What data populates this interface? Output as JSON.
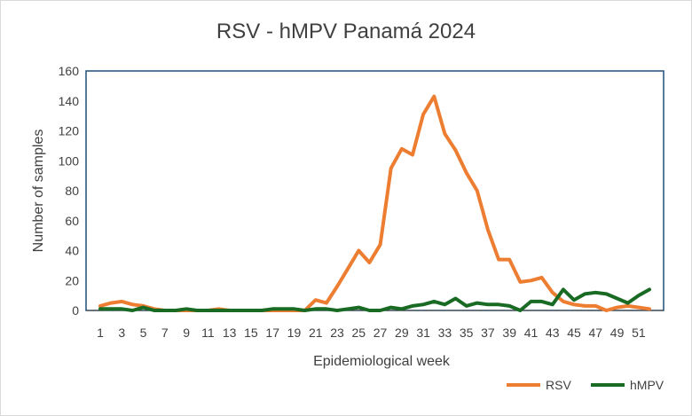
{
  "chart_data": {
    "type": "line",
    "title": "RSV - hMPV Panamá 2024",
    "xlabel": "Epidemiological week",
    "ylabel": "Number of samples",
    "ylim": [
      0,
      160
    ],
    "yticks": [
      "0",
      "20",
      "40",
      "60",
      "80",
      "100",
      "120",
      "140",
      "160"
    ],
    "x": [
      1,
      2,
      3,
      4,
      5,
      6,
      7,
      8,
      9,
      10,
      11,
      12,
      13,
      14,
      15,
      16,
      17,
      18,
      19,
      20,
      21,
      22,
      23,
      24,
      25,
      26,
      27,
      28,
      29,
      30,
      31,
      32,
      33,
      34,
      35,
      36,
      37,
      38,
      39,
      40,
      41,
      42,
      43,
      44,
      45,
      46,
      47,
      48,
      49,
      50,
      51,
      52
    ],
    "xtick_labels": [
      "1",
      "3",
      "5",
      "7",
      "9",
      "11",
      "13",
      "15",
      "17",
      "19",
      "21",
      "23",
      "25",
      "27",
      "29",
      "31",
      "33",
      "35",
      "37",
      "39",
      "41",
      "43",
      "45",
      "47",
      "49",
      "51"
    ],
    "grid": false,
    "legend_position": "bottom-right",
    "series": [
      {
        "name": "RSV",
        "color": "#ed7d31",
        "values": [
          3,
          5,
          6,
          4,
          3,
          1,
          0,
          0,
          0,
          0,
          0,
          1,
          0,
          0,
          0,
          0,
          0,
          0,
          0,
          0,
          7,
          5,
          16,
          28,
          40,
          32,
          44,
          95,
          108,
          104,
          131,
          143,
          118,
          107,
          92,
          80,
          54,
          34,
          34,
          19,
          20,
          22,
          12,
          6,
          4,
          3,
          3,
          0,
          2,
          3,
          2,
          1
        ]
      },
      {
        "name": "hMPV",
        "color": "#196b24",
        "values": [
          1,
          1,
          1,
          0,
          2,
          0,
          0,
          0,
          1,
          0,
          0,
          0,
          0,
          0,
          0,
          0,
          1,
          1,
          1,
          0,
          1,
          1,
          0,
          1,
          2,
          0,
          0,
          2,
          1,
          3,
          4,
          6,
          4,
          8,
          3,
          5,
          4,
          4,
          3,
          0,
          6,
          6,
          4,
          14,
          7,
          11,
          12,
          11,
          8,
          5,
          10,
          14
        ]
      }
    ]
  },
  "legend": {
    "items": [
      {
        "label": "RSV",
        "color": "#ed7d31"
      },
      {
        "label": "hMPV",
        "color": "#196b24"
      }
    ]
  },
  "colors": {
    "plot_border": "#1f4e79",
    "axis_line": "#404040"
  }
}
